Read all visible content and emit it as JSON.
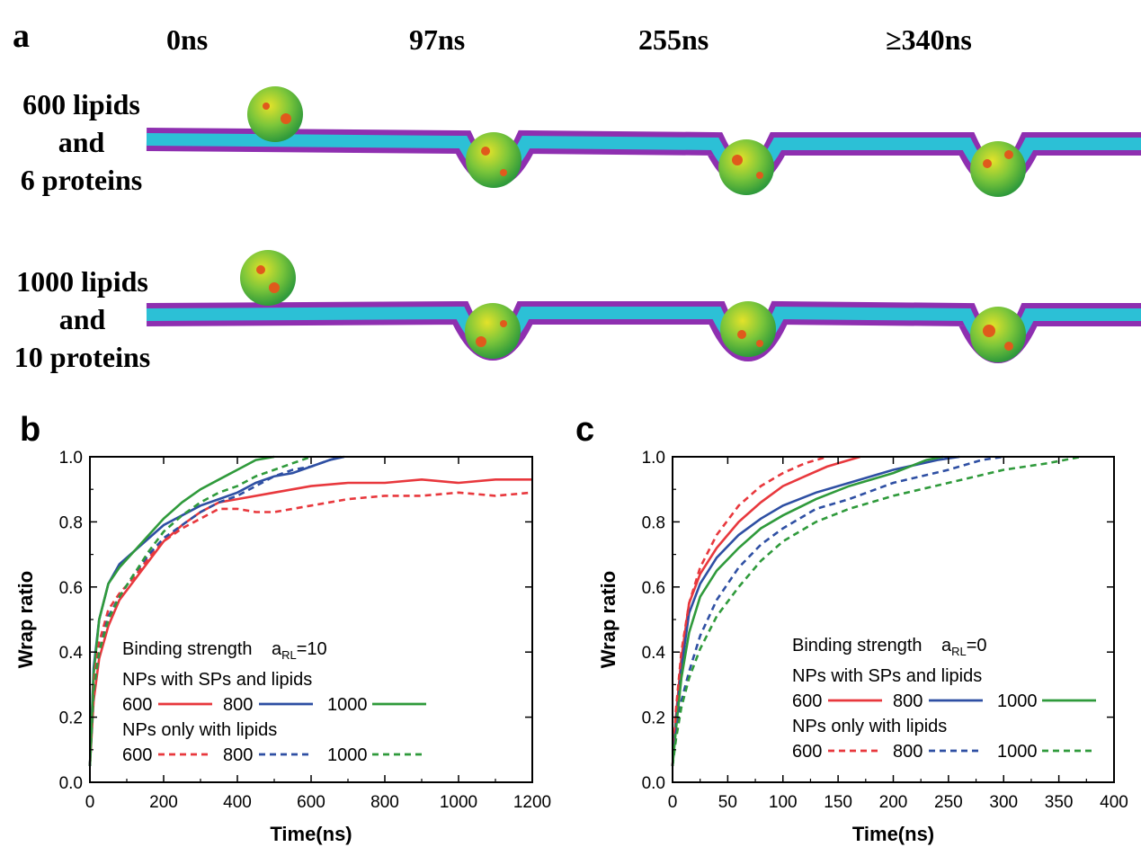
{
  "panel_a": {
    "label": "a",
    "times": [
      "0ns",
      "97ns",
      "255ns",
      "≥340ns"
    ],
    "rows": [
      {
        "lines": [
          "600 lipids",
          "and",
          "6 proteins"
        ]
      },
      {
        "lines": [
          "1000 lipids",
          "and",
          "10 proteins"
        ]
      }
    ],
    "colors": {
      "membrane_top": "#2cc0d6",
      "membrane_bottom": "#8e2fb0",
      "particle": "#3fb54a",
      "particle_hi": "#e3e22a",
      "protein": "#e05a1c"
    }
  },
  "chart_data": [
    {
      "panel": "b",
      "type": "line",
      "xlabel": "Time(ns)",
      "ylabel": "Wrap ratio",
      "xlim": [
        0,
        1200
      ],
      "ylim": [
        0,
        1.0
      ],
      "xticks": [
        "0",
        "200",
        "400",
        "600",
        "800",
        "1000",
        "1200"
      ],
      "yticks": [
        "0.0",
        "0.2",
        "0.4",
        "0.6",
        "0.8",
        "1.0"
      ],
      "legend": {
        "title": "Binding strength",
        "param_main": "a",
        "param_sub": "RL",
        "param_value": "=10",
        "group1": "NPs with SPs and lipids",
        "group2": "NPs only with lipids",
        "entries": [
          "600",
          "800",
          "1000"
        ]
      },
      "series": [
        {
          "name": "600",
          "style": "solid",
          "color": "#e8383d",
          "points": [
            [
              0,
              0.05
            ],
            [
              10,
              0.25
            ],
            [
              25,
              0.38
            ],
            [
              50,
              0.48
            ],
            [
              80,
              0.56
            ],
            [
              120,
              0.62
            ],
            [
              160,
              0.68
            ],
            [
              200,
              0.74
            ],
            [
              250,
              0.79
            ],
            [
              300,
              0.83
            ],
            [
              350,
              0.86
            ],
            [
              400,
              0.87
            ],
            [
              500,
              0.89
            ],
            [
              600,
              0.91
            ],
            [
              700,
              0.92
            ],
            [
              800,
              0.92
            ],
            [
              900,
              0.93
            ],
            [
              1000,
              0.92
            ],
            [
              1100,
              0.93
            ],
            [
              1200,
              0.93
            ]
          ]
        },
        {
          "name": "800",
          "style": "solid",
          "color": "#2e4fa3",
          "points": [
            [
              0,
              0.05
            ],
            [
              10,
              0.35
            ],
            [
              25,
              0.5
            ],
            [
              50,
              0.61
            ],
            [
              80,
              0.67
            ],
            [
              120,
              0.71
            ],
            [
              160,
              0.75
            ],
            [
              200,
              0.79
            ],
            [
              250,
              0.82
            ],
            [
              300,
              0.85
            ],
            [
              350,
              0.87
            ],
            [
              400,
              0.89
            ],
            [
              450,
              0.92
            ],
            [
              500,
              0.94
            ],
            [
              550,
              0.95
            ],
            [
              600,
              0.97
            ],
            [
              650,
              0.99
            ],
            [
              690,
              1.0
            ]
          ]
        },
        {
          "name": "1000",
          "style": "solid",
          "color": "#2f9a3b",
          "points": [
            [
              0,
              0.05
            ],
            [
              10,
              0.33
            ],
            [
              25,
              0.5
            ],
            [
              50,
              0.61
            ],
            [
              80,
              0.66
            ],
            [
              120,
              0.71
            ],
            [
              160,
              0.76
            ],
            [
              200,
              0.81
            ],
            [
              250,
              0.86
            ],
            [
              300,
              0.9
            ],
            [
              350,
              0.93
            ],
            [
              400,
              0.96
            ],
            [
              450,
              0.99
            ],
            [
              500,
              1.0
            ]
          ]
        },
        {
          "name": "600",
          "style": "dashed",
          "color": "#e8383d",
          "points": [
            [
              0,
              0.05
            ],
            [
              10,
              0.3
            ],
            [
              25,
              0.43
            ],
            [
              50,
              0.53
            ],
            [
              80,
              0.58
            ],
            [
              120,
              0.63
            ],
            [
              160,
              0.69
            ],
            [
              200,
              0.74
            ],
            [
              250,
              0.78
            ],
            [
              300,
              0.81
            ],
            [
              350,
              0.84
            ],
            [
              400,
              0.84
            ],
            [
              450,
              0.83
            ],
            [
              500,
              0.83
            ],
            [
              550,
              0.84
            ],
            [
              600,
              0.85
            ],
            [
              650,
              0.86
            ],
            [
              700,
              0.87
            ],
            [
              800,
              0.88
            ],
            [
              900,
              0.88
            ],
            [
              1000,
              0.89
            ],
            [
              1100,
              0.88
            ],
            [
              1200,
              0.89
            ]
          ]
        },
        {
          "name": "800",
          "style": "dashed",
          "color": "#2e4fa3",
          "points": [
            [
              0,
              0.05
            ],
            [
              10,
              0.28
            ],
            [
              25,
              0.4
            ],
            [
              50,
              0.51
            ],
            [
              80,
              0.57
            ],
            [
              120,
              0.64
            ],
            [
              160,
              0.7
            ],
            [
              200,
              0.75
            ],
            [
              250,
              0.79
            ],
            [
              300,
              0.83
            ],
            [
              350,
              0.86
            ],
            [
              400,
              0.88
            ],
            [
              450,
              0.91
            ],
            [
              500,
              0.94
            ],
            [
              550,
              0.96
            ],
            [
              600,
              0.97
            ],
            [
              650,
              0.99
            ],
            [
              680,
              1.0
            ]
          ]
        },
        {
          "name": "1000",
          "style": "dashed",
          "color": "#2f9a3b",
          "points": [
            [
              0,
              0.05
            ],
            [
              10,
              0.28
            ],
            [
              25,
              0.4
            ],
            [
              50,
              0.5
            ],
            [
              80,
              0.57
            ],
            [
              120,
              0.64
            ],
            [
              160,
              0.71
            ],
            [
              200,
              0.77
            ],
            [
              250,
              0.82
            ],
            [
              300,
              0.86
            ],
            [
              350,
              0.89
            ],
            [
              400,
              0.91
            ],
            [
              450,
              0.94
            ],
            [
              500,
              0.96
            ],
            [
              550,
              0.98
            ],
            [
              600,
              1.0
            ]
          ]
        }
      ]
    },
    {
      "panel": "c",
      "type": "line",
      "xlabel": "Time(ns)",
      "ylabel": "Wrap ratio",
      "xlim": [
        0,
        400
      ],
      "ylim": [
        0,
        1.0
      ],
      "xticks": [
        "0",
        "50",
        "100",
        "150",
        "200",
        "250",
        "300",
        "350",
        "400"
      ],
      "yticks": [
        "0.0",
        "0.2",
        "0.4",
        "0.6",
        "0.8",
        "1.0"
      ],
      "legend": {
        "title": "Binding strength",
        "param_main": "a",
        "param_sub": "RL",
        "param_value": "=0",
        "group1": "NPs with SPs and lipids",
        "group2": "NPs only with lipids",
        "entries": [
          "600",
          "800",
          "1000"
        ]
      },
      "series": [
        {
          "name": "600",
          "style": "solid",
          "color": "#e8383d",
          "points": [
            [
              0,
              0.05
            ],
            [
              3,
              0.2
            ],
            [
              8,
              0.38
            ],
            [
              15,
              0.55
            ],
            [
              25,
              0.64
            ],
            [
              40,
              0.72
            ],
            [
              60,
              0.8
            ],
            [
              80,
              0.86
            ],
            [
              100,
              0.91
            ],
            [
              120,
              0.94
            ],
            [
              140,
              0.97
            ],
            [
              160,
              0.99
            ],
            [
              170,
              1.0
            ]
          ]
        },
        {
          "name": "800",
          "style": "solid",
          "color": "#2e4fa3",
          "points": [
            [
              0,
              0.05
            ],
            [
              3,
              0.18
            ],
            [
              8,
              0.35
            ],
            [
              15,
              0.52
            ],
            [
              25,
              0.61
            ],
            [
              40,
              0.69
            ],
            [
              60,
              0.76
            ],
            [
              80,
              0.81
            ],
            [
              100,
              0.85
            ],
            [
              130,
              0.89
            ],
            [
              160,
              0.92
            ],
            [
              200,
              0.96
            ],
            [
              240,
              0.99
            ],
            [
              260,
              1.0
            ]
          ]
        },
        {
          "name": "1000",
          "style": "solid",
          "color": "#2f9a3b",
          "points": [
            [
              0,
              0.05
            ],
            [
              3,
              0.16
            ],
            [
              8,
              0.32
            ],
            [
              15,
              0.46
            ],
            [
              25,
              0.57
            ],
            [
              40,
              0.65
            ],
            [
              60,
              0.72
            ],
            [
              80,
              0.78
            ],
            [
              100,
              0.82
            ],
            [
              130,
              0.87
            ],
            [
              160,
              0.91
            ],
            [
              200,
              0.95
            ],
            [
              230,
              0.99
            ],
            [
              245,
              1.0
            ]
          ]
        },
        {
          "name": "600",
          "style": "dashed",
          "color": "#e8383d",
          "points": [
            [
              0,
              0.05
            ],
            [
              3,
              0.22
            ],
            [
              8,
              0.4
            ],
            [
              15,
              0.55
            ],
            [
              25,
              0.66
            ],
            [
              40,
              0.76
            ],
            [
              60,
              0.85
            ],
            [
              80,
              0.91
            ],
            [
              100,
              0.95
            ],
            [
              120,
              0.98
            ],
            [
              140,
              1.0
            ]
          ]
        },
        {
          "name": "800",
          "style": "dashed",
          "color": "#2e4fa3",
          "points": [
            [
              0,
              0.05
            ],
            [
              3,
              0.15
            ],
            [
              8,
              0.25
            ],
            [
              15,
              0.34
            ],
            [
              25,
              0.45
            ],
            [
              40,
              0.56
            ],
            [
              60,
              0.66
            ],
            [
              80,
              0.73
            ],
            [
              100,
              0.78
            ],
            [
              130,
              0.84
            ],
            [
              160,
              0.87
            ],
            [
              200,
              0.92
            ],
            [
              250,
              0.96
            ],
            [
              280,
              0.99
            ],
            [
              300,
              1.0
            ]
          ]
        },
        {
          "name": "1000",
          "style": "dashed",
          "color": "#2f9a3b",
          "points": [
            [
              0,
              0.05
            ],
            [
              3,
              0.13
            ],
            [
              8,
              0.23
            ],
            [
              15,
              0.32
            ],
            [
              25,
              0.41
            ],
            [
              40,
              0.51
            ],
            [
              60,
              0.6
            ],
            [
              80,
              0.68
            ],
            [
              100,
              0.74
            ],
            [
              130,
              0.8
            ],
            [
              160,
              0.84
            ],
            [
              200,
              0.88
            ],
            [
              250,
              0.92
            ],
            [
              300,
              0.96
            ],
            [
              340,
              0.98
            ],
            [
              370,
              1.0
            ]
          ]
        }
      ]
    }
  ]
}
